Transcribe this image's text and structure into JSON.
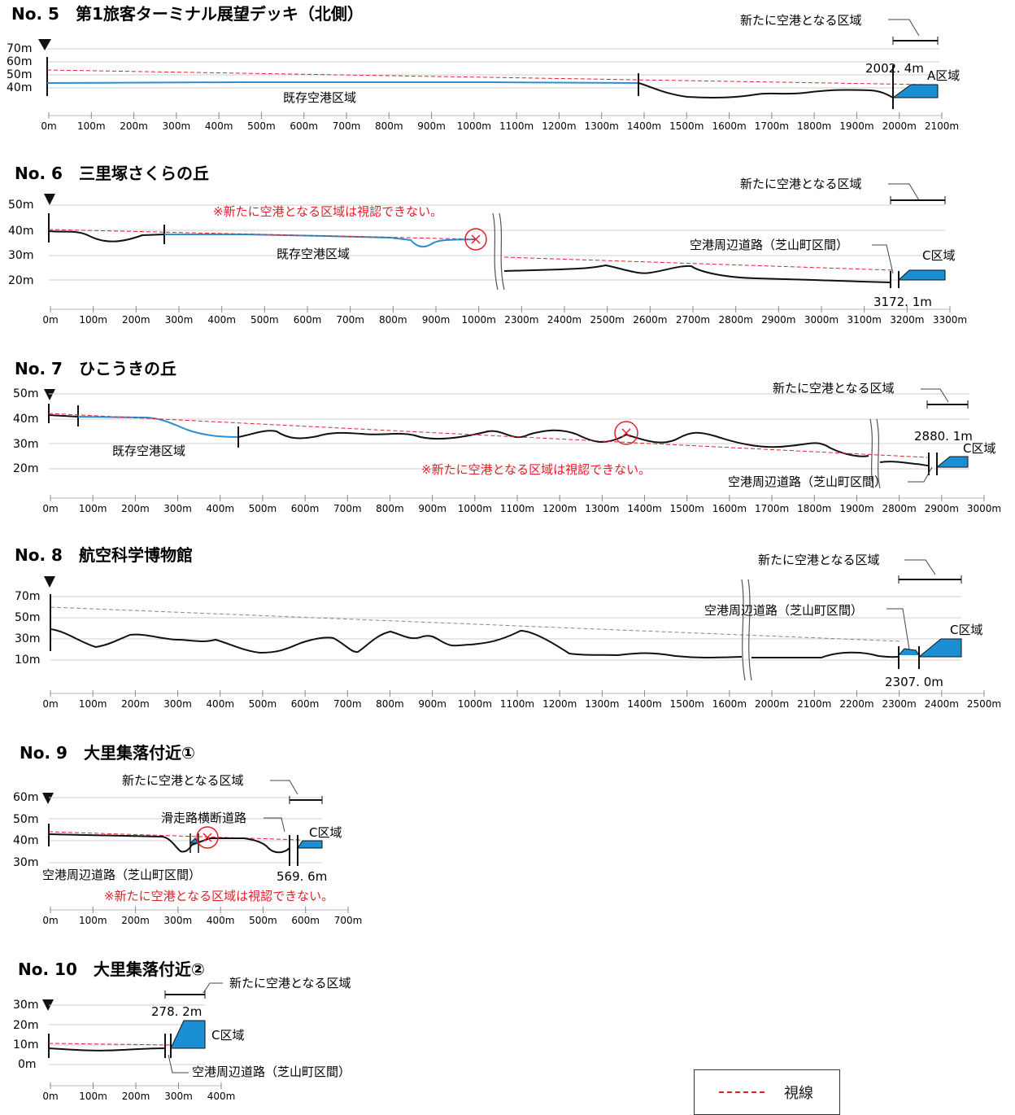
{
  "legend": {
    "sight_line": "視線"
  },
  "profiles": [
    {
      "id": "5",
      "title": "No. 5　第1旅客ターミナル展望デッキ（北側）",
      "new_area_label": "新たに空港となる区域",
      "y_labels": [
        "70m",
        "60m",
        "50m",
        "40m"
      ],
      "x_labels": [
        "0m",
        "100m",
        "200m",
        "300m",
        "400m",
        "500m",
        "600m",
        "700m",
        "800m",
        "900m",
        "1000m",
        "1100m",
        "1200m",
        "1300m",
        "1400m",
        "1500m",
        "1600m",
        "1700m",
        "1800m",
        "1900m",
        "2000m",
        "2100m"
      ],
      "existing_label": "既存空港区域",
      "distance_label": "2002. 4m",
      "zone_label": "A区域"
    },
    {
      "id": "6",
      "title": "No. 6　三里塚さくらの丘",
      "new_area_label": "新たに空港となる区域",
      "y_labels": [
        "50m",
        "40m",
        "30m",
        "20m"
      ],
      "x_labels": [
        "0m",
        "100m",
        "200m",
        "300m",
        "400m",
        "500m",
        "600m",
        "700m",
        "800m",
        "900m",
        "1000m",
        "2300m",
        "2400m",
        "2500m",
        "2600m",
        "2700m",
        "2800m",
        "2900m",
        "3000m",
        "3100m",
        "3200m",
        "3300m"
      ],
      "warning": "※新たに空港となる区域は視認できない。",
      "existing_label": "既存空港区域",
      "road_label": "空港周辺道路（芝山町区間）",
      "distance_label": "3172. 1m",
      "zone_label": "C区域"
    },
    {
      "id": "7",
      "title": "No. 7　ひこうきの丘",
      "new_area_label": "新たに空港となる区域",
      "y_labels": [
        "50m",
        "40m",
        "30m",
        "20m"
      ],
      "x_labels": [
        "0m",
        "100m",
        "200m",
        "300m",
        "400m",
        "500m",
        "600m",
        "700m",
        "800m",
        "900m",
        "1000m",
        "1100m",
        "1200m",
        "1300m",
        "1400m",
        "1500m",
        "1600m",
        "1700m",
        "1800m",
        "1900m",
        "2800m",
        "2900m",
        "3000m"
      ],
      "warning": "※新たに空港となる区域は視認できない。",
      "existing_label": "既存空港区域",
      "road_label": "空港周辺道路（芝山町区間）",
      "distance_label": "2880. 1m",
      "zone_label": "C区域"
    },
    {
      "id": "8",
      "title": "No. 8　航空科学博物館",
      "new_area_label": "新たに空港となる区域",
      "y_labels": [
        "70m",
        "50m",
        "30m",
        "10m"
      ],
      "x_labels": [
        "0m",
        "100m",
        "200m",
        "300m",
        "400m",
        "500m",
        "600m",
        "700m",
        "800m",
        "900m",
        "1000m",
        "1100m",
        "1200m",
        "1300m",
        "1400m",
        "1500m",
        "1600m",
        "2000m",
        "2100m",
        "2200m",
        "2300m",
        "2400m",
        "2500m"
      ],
      "road_label": "空港周辺道路（芝山町区間）",
      "distance_label": "2307. 0m",
      "zone_label": "C区域"
    },
    {
      "id": "9",
      "title": "No. 9　大里集落付近①",
      "new_area_label": "新たに空港となる区域",
      "y_labels": [
        "60m",
        "50m",
        "40m",
        "30m"
      ],
      "x_labels": [
        "0m",
        "100m",
        "200m",
        "300m",
        "400m",
        "500m",
        "600m",
        "700m"
      ],
      "runway_road_label": "滑走路横断道路",
      "road_label": "空港周辺道路（芝山町区間）",
      "distance_label": "569. 6m",
      "zone_label": "C区域",
      "warning": "※新たに空港となる区域は視認できない。"
    },
    {
      "id": "10",
      "title": "No. 10　大里集落付近②",
      "new_area_label": "新たに空港となる区域",
      "y_labels": [
        "30m",
        "20m",
        "10m",
        "0m"
      ],
      "x_labels": [
        "0m",
        "100m",
        "200m",
        "300m",
        "400m"
      ],
      "distance_label": "278. 2m",
      "zone_label": "C区域",
      "road_label": "空港周辺道路（芝山町区間）"
    }
  ]
}
